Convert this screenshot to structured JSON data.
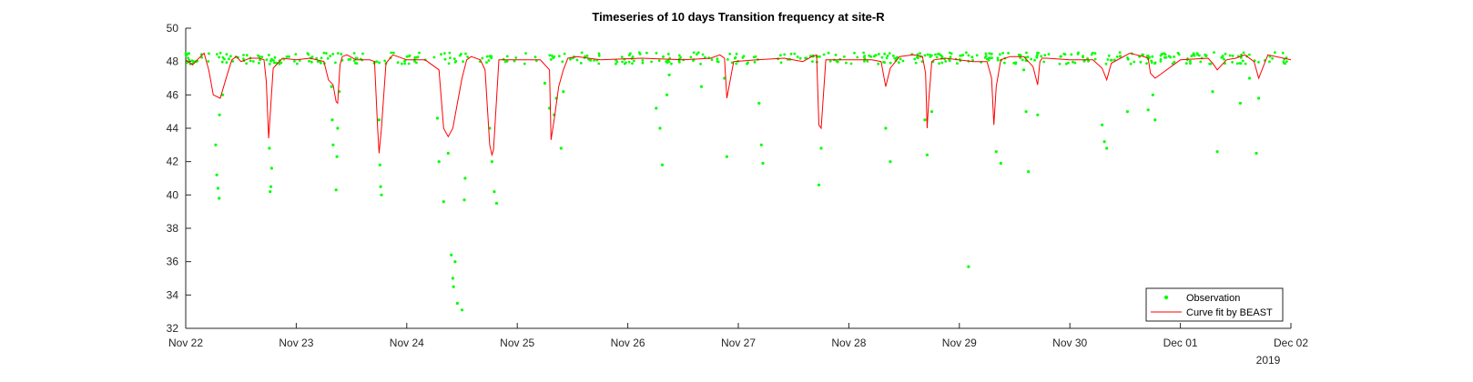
{
  "chart_data": {
    "type": "scatter",
    "title": "Timeseries of 10 days Transition frequency at site-R",
    "xlabel": "",
    "ylabel": "",
    "year_label": "2019",
    "xlim": [
      "2019-11-22",
      "2019-12-02"
    ],
    "ylim": [
      32,
      50
    ],
    "x_ticks": [
      "Nov 22",
      "Nov 23",
      "Nov 24",
      "Nov 25",
      "Nov 26",
      "Nov 27",
      "Nov 28",
      "Nov 29",
      "Nov 30",
      "Dec 01",
      "Dec 02"
    ],
    "y_ticks": [
      32,
      34,
      36,
      38,
      40,
      42,
      44,
      46,
      48,
      50
    ],
    "grid": false,
    "legend_position": "bottom-right",
    "colors": {
      "observation": "#00ff00",
      "curve": "#ff0000",
      "axis": "#262626"
    },
    "series": [
      {
        "name": "Observation",
        "kind": "points",
        "baseline": 48.2,
        "x": [
          "2019-11-22 06:30",
          "2019-11-22 06:45",
          "2019-11-22 07:00",
          "2019-11-22 07:15",
          "2019-11-22 07:20",
          "2019-11-22 08:00",
          "2019-11-22 18:10",
          "2019-11-22 18:20",
          "2019-11-22 18:30",
          "2019-11-22 18:40",
          "2019-11-23 07:40",
          "2019-11-23 07:50",
          "2019-11-23 08:00",
          "2019-11-23 08:40",
          "2019-11-23 08:50",
          "2019-11-23 09:00",
          "2019-11-23 09:20",
          "2019-11-23 18:00",
          "2019-11-23 18:10",
          "2019-11-23 18:20",
          "2019-11-23 18:30",
          "2019-11-24 06:40",
          "2019-11-24 07:00",
          "2019-11-24 08:00",
          "2019-11-24 09:00",
          "2019-11-24 09:40",
          "2019-11-24 10:00",
          "2019-11-24 10:10",
          "2019-11-24 10:30",
          "2019-11-24 11:00",
          "2019-11-24 12:00",
          "2019-11-24 12:30",
          "2019-11-24 12:40",
          "2019-11-24 18:00",
          "2019-11-24 18:30",
          "2019-11-24 19:00",
          "2019-11-24 19:30",
          "2019-11-25 06:00",
          "2019-11-25 07:00",
          "2019-11-25 08:00",
          "2019-11-25 08:30",
          "2019-11-25 09:30",
          "2019-11-25 10:00",
          "2019-11-26 06:10",
          "2019-11-26 07:00",
          "2019-11-26 07:30",
          "2019-11-26 08:30",
          "2019-11-26 09:00",
          "2019-11-26 16:00",
          "2019-11-26 21:00",
          "2019-11-26 21:30",
          "2019-11-27 04:30",
          "2019-11-27 05:00",
          "2019-11-27 05:20",
          "2019-11-27 17:30",
          "2019-11-27 18:00",
          "2019-11-28 08:00",
          "2019-11-28 09:00",
          "2019-11-28 16:30",
          "2019-11-28 17:00",
          "2019-11-28 18:00",
          "2019-11-29 02:00",
          "2019-11-29 08:00",
          "2019-11-29 09:00",
          "2019-11-29 14:00",
          "2019-11-29 14:30",
          "2019-11-29 15:00",
          "2019-11-29 17:00",
          "2019-11-30 07:00",
          "2019-11-30 07:30",
          "2019-11-30 08:00",
          "2019-11-30 12:30",
          "2019-11-30 17:00",
          "2019-11-30 18:00",
          "2019-11-30 18:30",
          "2019-12-01 07:00",
          "2019-12-01 08:00",
          "2019-12-01 13:00",
          "2019-12-01 15:00",
          "2019-12-01 16:30",
          "2019-12-01 17:00"
        ],
        "y": [
          43.0,
          41.2,
          40.4,
          39.8,
          44.8,
          46.0,
          42.8,
          40.2,
          40.5,
          41.6,
          46.5,
          44.5,
          43.0,
          40.3,
          42.3,
          44.0,
          46.2,
          44.5,
          41.8,
          40.5,
          40.0,
          44.6,
          42.0,
          39.6,
          42.5,
          36.4,
          35.0,
          34.5,
          36.0,
          33.5,
          33.1,
          39.7,
          41.0,
          44.0,
          42.0,
          40.2,
          39.5,
          46.7,
          45.2,
          44.8,
          45.8,
          42.8,
          46.2,
          45.2,
          44.0,
          41.8,
          46.0,
          47.2,
          46.5,
          47.0,
          42.3,
          45.5,
          43.0,
          41.9,
          40.6,
          42.8,
          44.0,
          42.0,
          44.5,
          42.4,
          45.0,
          35.7,
          42.6,
          41.9,
          47.5,
          45.0,
          41.4,
          44.8,
          44.2,
          43.2,
          42.8,
          45.0,
          45.1,
          46.0,
          44.5,
          46.2,
          42.6,
          45.5,
          47.0,
          42.5,
          45.8
        ]
      },
      {
        "name": "Curve fit by BEAST",
        "kind": "line",
        "x": [
          "2019-11-22 00:00",
          "2019-11-22 01:30",
          "2019-11-22 02:30",
          "2019-11-22 04:00",
          "2019-11-22 05:00",
          "2019-11-22 06:00",
          "2019-11-22 07:30",
          "2019-11-22 09:00",
          "2019-11-22 10:00",
          "2019-11-22 11:00",
          "2019-11-22 12:00",
          "2019-11-22 14:00",
          "2019-11-22 16:00",
          "2019-11-22 17:00",
          "2019-11-22 17:30",
          "2019-11-22 18:00",
          "2019-11-22 19:00",
          "2019-11-22 21:00",
          "2019-11-23 00:00",
          "2019-11-23 03:00",
          "2019-11-23 06:00",
          "2019-11-23 07:00",
          "2019-11-23 08:00",
          "2019-11-23 08:40",
          "2019-11-23 09:00",
          "2019-11-23 09:30",
          "2019-11-23 10:00",
          "2019-11-23 11:00",
          "2019-11-23 13:00",
          "2019-11-23 16:00",
          "2019-11-23 17:00",
          "2019-11-23 17:40",
          "2019-11-23 18:00",
          "2019-11-23 18:30",
          "2019-11-23 19:30",
          "2019-11-23 21:00",
          "2019-11-24 00:00",
          "2019-11-24 04:00",
          "2019-11-24 07:00",
          "2019-11-24 08:00",
          "2019-11-24 09:00",
          "2019-11-24 10:00",
          "2019-11-24 11:00",
          "2019-11-24 12:00",
          "2019-11-24 13:00",
          "2019-11-24 14:00",
          "2019-11-24 16:00",
          "2019-11-24 17:00",
          "2019-11-24 18:00",
          "2019-11-24 18:30",
          "2019-11-24 18:50",
          "2019-11-24 20:00",
          "2019-11-25 00:00",
          "2019-11-25 05:00",
          "2019-11-25 07:00",
          "2019-11-25 07:20",
          "2019-11-25 08:00",
          "2019-11-25 09:00",
          "2019-11-25 10:00",
          "2019-11-25 11:00",
          "2019-11-25 13:00",
          "2019-11-25 18:00",
          "2019-11-26 03:00",
          "2019-11-26 12:00",
          "2019-11-26 18:00",
          "2019-11-26 20:00",
          "2019-11-26 21:00",
          "2019-11-26 21:30",
          "2019-11-26 23:00",
          "2019-11-27 04:00",
          "2019-11-27 10:00",
          "2019-11-27 14:00",
          "2019-11-27 16:00",
          "2019-11-27 17:00",
          "2019-11-27 17:30",
          "2019-11-27 18:00",
          "2019-11-27 19:00",
          "2019-11-28 00:00",
          "2019-11-28 05:00",
          "2019-11-28 07:00",
          "2019-11-28 08:00",
          "2019-11-28 09:00",
          "2019-11-28 11:00",
          "2019-11-28 14:00",
          "2019-11-28 16:00",
          "2019-11-28 16:40",
          "2019-11-28 17:00",
          "2019-11-28 17:20",
          "2019-11-28 18:00",
          "2019-11-28 18:30",
          "2019-11-28 21:00",
          "2019-11-29 03:00",
          "2019-11-29 06:00",
          "2019-11-29 07:00",
          "2019-11-29 07:30",
          "2019-11-29 08:00",
          "2019-11-29 09:00",
          "2019-11-29 11:00",
          "2019-11-29 14:00",
          "2019-11-29 16:00",
          "2019-11-29 17:00",
          "2019-11-29 17:30",
          "2019-11-29 18:00",
          "2019-11-29 19:00",
          "2019-11-30 00:00",
          "2019-11-30 05:00",
          "2019-11-30 07:00",
          "2019-11-30 08:00",
          "2019-11-30 09:00",
          "2019-11-30 11:00",
          "2019-11-30 13:00",
          "2019-11-30 16:00",
          "2019-11-30 17:00",
          "2019-11-30 17:30",
          "2019-11-30 18:30",
          "2019-11-30 20:00",
          "2019-12-01 00:00",
          "2019-12-01 06:00",
          "2019-12-01 07:00",
          "2019-12-01 08:00",
          "2019-12-01 10:00",
          "2019-12-01 12:00",
          "2019-12-01 14:00",
          "2019-12-01 16:00",
          "2019-12-01 17:00",
          "2019-12-01 19:00",
          "2019-12-02 00:00"
        ],
        "y": [
          48.1,
          47.8,
          48.1,
          48.5,
          47.5,
          46.0,
          45.8,
          47.2,
          48.1,
          48.3,
          48.0,
          48.2,
          48.2,
          48.1,
          46.8,
          43.4,
          47.6,
          48.2,
          48.1,
          48.2,
          48.0,
          46.9,
          46.6,
          45.6,
          45.5,
          47.8,
          48.3,
          48.4,
          48.1,
          48.1,
          48.0,
          44.0,
          42.5,
          44.0,
          47.9,
          48.4,
          48.1,
          48.1,
          47.5,
          44.0,
          43.5,
          44.0,
          45.5,
          47.0,
          48.1,
          48.3,
          48.1,
          47.5,
          43.0,
          42.4,
          42.7,
          48.1,
          48.1,
          48.1,
          47.5,
          43.3,
          44.5,
          46.5,
          47.5,
          48.2,
          48.3,
          48.1,
          48.2,
          48.1,
          48.2,
          48.4,
          48.2,
          45.8,
          48.0,
          48.1,
          48.2,
          48.0,
          48.3,
          48.4,
          44.2,
          44.0,
          48.1,
          48.1,
          48.1,
          48.0,
          46.5,
          47.6,
          48.3,
          48.4,
          48.3,
          47.3,
          44.0,
          45.6,
          48.0,
          48.1,
          48.2,
          48.0,
          48.0,
          47.0,
          44.2,
          46.5,
          48.1,
          48.3,
          48.3,
          47.7,
          46.6,
          48.0,
          48.2,
          48.2,
          48.1,
          48.1,
          47.6,
          46.9,
          47.9,
          48.2,
          48.5,
          48.3,
          48.2,
          47.3,
          47.0,
          47.3,
          48.1,
          48.2,
          47.9,
          47.5,
          48.1,
          48.2,
          48.4,
          48.0,
          47.0,
          48.4,
          48.1
        ]
      }
    ]
  }
}
